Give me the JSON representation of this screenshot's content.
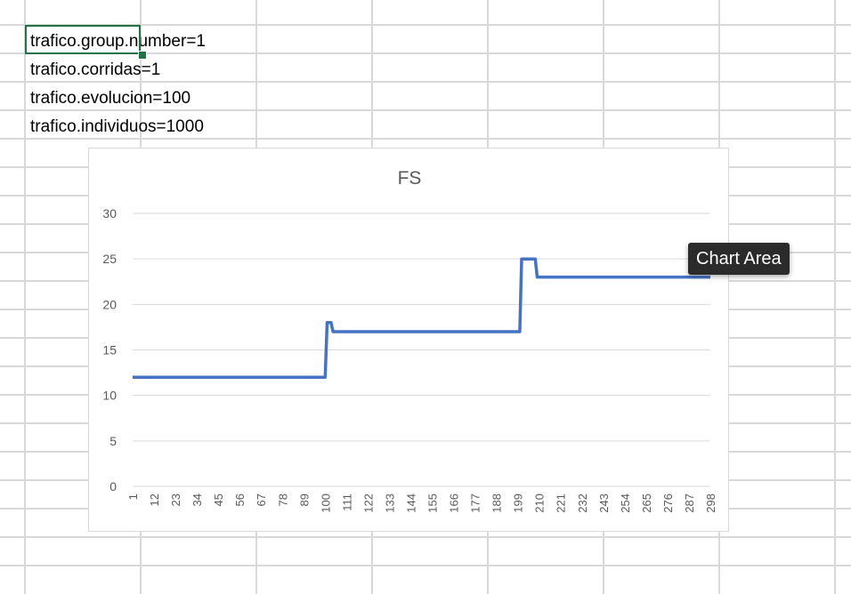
{
  "cells": [
    {
      "text": "trafico.group.number=1"
    },
    {
      "text": "trafico.corridas=1"
    },
    {
      "text": "trafico.evolucion=100"
    },
    {
      "text": "trafico.individuos=1000"
    }
  ],
  "tooltip": {
    "label": "Chart Area"
  },
  "colors": {
    "series": "#4472c4",
    "gridline": "#d9d9d9",
    "selection": "#217346"
  },
  "chart_data": {
    "type": "line",
    "title": "FS",
    "xlabel": "",
    "ylabel": "",
    "ylim": [
      0,
      30
    ],
    "y_ticks": [
      0,
      5,
      10,
      15,
      20,
      25,
      30
    ],
    "x_range": [
      1,
      298
    ],
    "x_tick_labels": [
      "1",
      "12",
      "23",
      "34",
      "45",
      "56",
      "67",
      "78",
      "89",
      "100",
      "111",
      "122",
      "133",
      "144",
      "155",
      "166",
      "177",
      "188",
      "199",
      "210",
      "221",
      "232",
      "243",
      "254",
      "265",
      "276",
      "287",
      "298"
    ],
    "grid": true,
    "legend": "none",
    "series": [
      {
        "points": [
          [
            1,
            12
          ],
          [
            100,
            12
          ],
          [
            101,
            18
          ],
          [
            103,
            18
          ],
          [
            104,
            17
          ],
          [
            200,
            17
          ],
          [
            201,
            25
          ],
          [
            208,
            25
          ],
          [
            209,
            23
          ],
          [
            298,
            23
          ]
        ]
      }
    ]
  }
}
